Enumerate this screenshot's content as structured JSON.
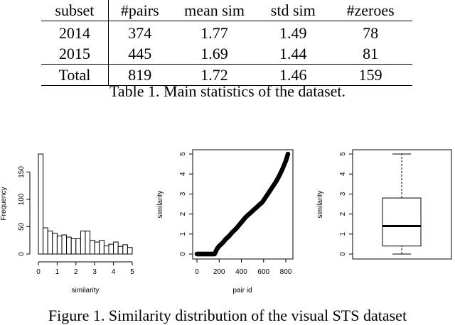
{
  "table": {
    "headers": [
      "subset",
      "#pairs",
      "mean sim",
      "std sim",
      "#zeroes"
    ],
    "rows": [
      [
        "2014",
        "374",
        "1.77",
        "1.49",
        "78"
      ],
      [
        "2015",
        "445",
        "1.69",
        "1.44",
        "81"
      ]
    ],
    "total": [
      "Total",
      "819",
      "1.72",
      "1.46",
      "159"
    ],
    "caption": "Table 1. Main statistics of the dataset."
  },
  "figure_caption": "Figure 1. Similarity distribution of the visual STS dataset",
  "chart_data": [
    {
      "type": "bar",
      "xlabel": "similarity",
      "ylabel": "Frequency",
      "xticks": [
        "0",
        "1",
        "2",
        "3",
        "4",
        "5"
      ],
      "yticks": [
        "0",
        "50",
        "100",
        "150"
      ],
      "xlim": [
        0,
        5
      ],
      "ylim": [
        0,
        183
      ],
      "bin_width": 0.25,
      "values": [
        183,
        48,
        42,
        38,
        33,
        35,
        31,
        28,
        28,
        42,
        42,
        25,
        22,
        25,
        15,
        18,
        22,
        14,
        17,
        12
      ]
    },
    {
      "type": "scatter",
      "xlabel": "pair id",
      "ylabel": "similarity",
      "xticks": [
        "0",
        "200",
        "400",
        "600",
        "800"
      ],
      "yticks": [
        "0",
        "1",
        "2",
        "3",
        "4",
        "5"
      ],
      "xlim": [
        0,
        819
      ],
      "ylim": [
        0,
        5
      ],
      "x": [
        0,
        40,
        80,
        120,
        159,
        180,
        200,
        230,
        260,
        290,
        320,
        350,
        380,
        410,
        440,
        470,
        500,
        530,
        560,
        590,
        620,
        650,
        680,
        710,
        740,
        770,
        800,
        819
      ],
      "y": [
        0,
        0,
        0,
        0,
        0,
        0.25,
        0.4,
        0.55,
        0.75,
        0.9,
        1.1,
        1.25,
        1.45,
        1.65,
        1.85,
        2.0,
        2.15,
        2.3,
        2.45,
        2.6,
        2.85,
        3.1,
        3.35,
        3.6,
        3.9,
        4.25,
        4.65,
        5.0
      ]
    },
    {
      "type": "box",
      "ylabel": "similarity",
      "yticks": [
        "0",
        "1",
        "2",
        "3",
        "4",
        "5"
      ],
      "ylim": [
        0,
        5
      ],
      "min": 0,
      "q1": 0.4,
      "median": 1.4,
      "q3": 2.8,
      "max": 5
    }
  ]
}
